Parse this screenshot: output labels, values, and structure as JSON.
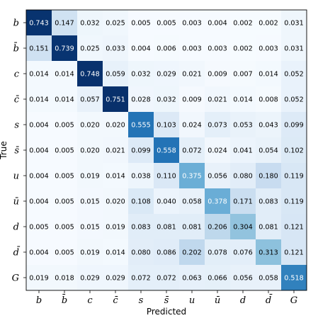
{
  "chart_data": {
    "type": "heatmap",
    "xlabel": "Predicted",
    "ylabel": "True",
    "x_categories": [
      "b",
      "b̄",
      "c",
      "c̄",
      "s",
      "s̄",
      "u",
      "ū",
      "d",
      "d̄",
      "G"
    ],
    "y_categories": [
      "b",
      "b̄",
      "c",
      "c̄",
      "s",
      "s̄",
      "u",
      "ū",
      "d",
      "d̄",
      "G"
    ],
    "values": [
      [
        0.743,
        0.147,
        0.032,
        0.025,
        0.005,
        0.005,
        0.003,
        0.004,
        0.002,
        0.002,
        0.031
      ],
      [
        0.151,
        0.739,
        0.025,
        0.033,
        0.004,
        0.006,
        0.003,
        0.003,
        0.002,
        0.003,
        0.031
      ],
      [
        0.014,
        0.014,
        0.748,
        0.059,
        0.032,
        0.029,
        0.021,
        0.009,
        0.007,
        0.014,
        0.052
      ],
      [
        0.014,
        0.014,
        0.057,
        0.751,
        0.028,
        0.032,
        0.009,
        0.021,
        0.014,
        0.008,
        0.052
      ],
      [
        0.004,
        0.005,
        0.02,
        0.02,
        0.555,
        0.103,
        0.024,
        0.073,
        0.053,
        0.043,
        0.099
      ],
      [
        0.004,
        0.005,
        0.02,
        0.021,
        0.099,
        0.558,
        0.072,
        0.024,
        0.041,
        0.054,
        0.102
      ],
      [
        0.004,
        0.005,
        0.019,
        0.014,
        0.038,
        0.11,
        0.375,
        0.056,
        0.08,
        0.18,
        0.119
      ],
      [
        0.004,
        0.005,
        0.015,
        0.02,
        0.108,
        0.04,
        0.058,
        0.378,
        0.171,
        0.083,
        0.119
      ],
      [
        0.005,
        0.005,
        0.015,
        0.019,
        0.083,
        0.081,
        0.081,
        0.206,
        0.304,
        0.081,
        0.121
      ],
      [
        0.004,
        0.005,
        0.019,
        0.014,
        0.08,
        0.086,
        0.202,
        0.078,
        0.076,
        0.313,
        0.121
      ],
      [
        0.019,
        0.018,
        0.029,
        0.029,
        0.072,
        0.072,
        0.063,
        0.066,
        0.056,
        0.058,
        0.518
      ]
    ],
    "colormap": "Blues",
    "value_range": [
      0,
      0.751
    ],
    "grid": false
  }
}
